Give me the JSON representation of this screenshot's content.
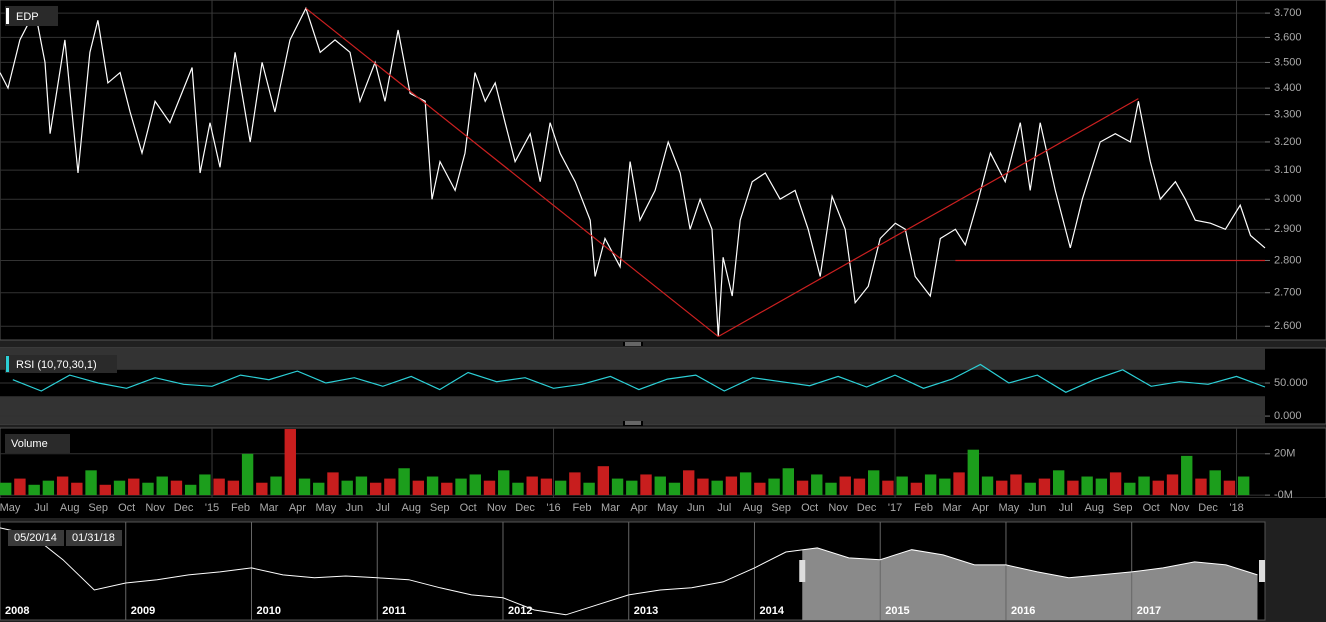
{
  "chart_data": [
    {
      "type": "line",
      "title": "EDP",
      "color": "#ffffff",
      "log_scale": true,
      "grid": true,
      "x": [
        -7.45,
        -7.17,
        -6.75,
        -6.22,
        -5.87,
        -5.69,
        -5.17,
        -4.71,
        -4.29,
        -4.01,
        -3.66,
        -3.23,
        -2.88,
        -2.46,
        -2,
        -1.48,
        -0.7,
        -0.42,
        -0.07,
        0.28,
        0.81,
        1.34,
        1.76,
        2.21,
        2.74,
        3.3,
        3.8,
        4.32,
        4.85,
        5.2,
        5.73,
        6.08,
        6.54,
        6.96,
        7.49,
        7.73,
        8.01,
        8.54,
        8.89,
        9.24,
        9.6,
        9.95,
        10.3,
        10.65,
        11.18,
        11.53,
        11.88,
        12.23,
        12.76,
        13.29,
        13.46,
        13.81,
        14.34,
        14.69,
        15.04,
        15.57,
        16.03,
        16.45,
        16.8,
        17.15,
        17.57,
        17.79,
        17.96,
        18.28,
        18.56,
        18.98,
        19.44,
        19.96,
        20.49,
        20.95,
        21.37,
        21.79,
        22.25,
        22.6,
        23.06,
        23.48,
        24.01,
        24.36,
        24.71,
        25.24,
        25.59,
        26.12,
        26.47,
        26.93,
        27.35,
        27.87,
        28.4,
        28.75,
        29.1,
        29.63,
        30.16,
        30.58,
        31.21,
        31.74,
        32.27,
        32.55,
        32.97,
        33.32,
        33.85,
        34.2,
        34.55,
        35.08,
        35.61,
        36.13,
        36.49,
        37.0
      ],
      "values": [
        3.46,
        3.4,
        3.59,
        3.71,
        3.5,
        3.23,
        3.59,
        3.09,
        3.54,
        3.67,
        3.42,
        3.46,
        3.31,
        3.16,
        3.35,
        3.27,
        3.48,
        3.09,
        3.27,
        3.11,
        3.54,
        3.2,
        3.5,
        3.31,
        3.59,
        3.72,
        3.54,
        3.59,
        3.54,
        3.35,
        3.5,
        3.35,
        3.63,
        3.38,
        3.35,
        3.0,
        3.13,
        3.03,
        3.16,
        3.46,
        3.35,
        3.42,
        3.27,
        3.13,
        3.23,
        3.06,
        3.27,
        3.16,
        3.06,
        2.93,
        2.75,
        2.87,
        2.78,
        3.13,
        2.93,
        3.03,
        3.2,
        3.09,
        2.9,
        3.0,
        2.9,
        2.57,
        2.81,
        2.69,
        2.93,
        3.06,
        3.09,
        3.0,
        3.03,
        2.9,
        2.75,
        3.01,
        2.9,
        2.67,
        2.72,
        2.87,
        2.92,
        2.9,
        2.75,
        2.69,
        2.87,
        2.9,
        2.85,
        3.0,
        3.16,
        3.06,
        3.27,
        3.03,
        3.27,
        3.03,
        2.84,
        3.0,
        3.2,
        3.23,
        3.2,
        3.35,
        3.13,
        3.0,
        3.06,
        3.0,
        2.93,
        2.92,
        2.9,
        2.98,
        2.88,
        2.84
      ],
      "xlim": [
        -7.45,
        37
      ],
      "ylim": [
        2.56,
        3.755
      ],
      "yticks": [
        {
          "value": 2.6,
          "label": "2.600"
        },
        {
          "value": 2.7,
          "label": "2.700"
        },
        {
          "value": 2.8,
          "label": "2.800"
        },
        {
          "value": 2.9,
          "label": "2.900"
        },
        {
          "value": 3.0,
          "label": "3.000"
        },
        {
          "value": 3.1,
          "label": "3.100"
        },
        {
          "value": 3.2,
          "label": "3.200"
        },
        {
          "value": 3.3,
          "label": "3.300"
        },
        {
          "value": 3.4,
          "label": "3.400"
        },
        {
          "value": 3.5,
          "label": "3.500"
        },
        {
          "value": 3.6,
          "label": "3.600"
        },
        {
          "value": 3.7,
          "label": "3.700"
        }
      ],
      "xgrid": [
        0,
        12,
        24,
        36
      ],
      "trendlines": [
        {
          "x": [
            3.3,
            17.79
          ],
          "y": [
            3.72,
            2.57
          ],
          "color": "#cc2020"
        },
        {
          "x": [
            17.79,
            32.55
          ],
          "y": [
            2.57,
            3.36
          ],
          "color": "#cc2020"
        },
        {
          "x": [
            26.12,
            37.0
          ],
          "y": [
            2.8,
            2.8
          ],
          "color": "#cc2020"
        }
      ]
    },
    {
      "type": "line",
      "title": "RSI (10,70,30,1)",
      "color": "#2ccfd6",
      "grid": true,
      "x": [
        -7,
        -6,
        -5,
        -4,
        -3,
        -2,
        -1,
        0,
        1,
        2,
        3,
        4,
        5,
        6,
        7,
        8,
        9,
        10,
        11,
        12,
        13,
        14,
        15,
        16,
        17,
        18,
        19,
        20,
        21,
        22,
        23,
        24,
        25,
        26,
        27,
        28,
        29,
        30,
        31,
        32,
        33,
        34,
        35,
        36,
        37
      ],
      "values": [
        55,
        38,
        62,
        50,
        42,
        58,
        48,
        45,
        62,
        55,
        68,
        50,
        58,
        45,
        60,
        40,
        66,
        52,
        58,
        42,
        48,
        60,
        40,
        56,
        62,
        38,
        58,
        52,
        46,
        60,
        44,
        62,
        42,
        56,
        78,
        50,
        62,
        36,
        55,
        70,
        45,
        52,
        48,
        60,
        44
      ],
      "xlim": [
        -7.45,
        37
      ],
      "ylim": [
        -12,
        103
      ],
      "bands": [
        30,
        70
      ],
      "yticks": [
        {
          "value": 0,
          "label": "0.000"
        },
        {
          "value": 50,
          "label": "50.000"
        }
      ]
    },
    {
      "type": "bar",
      "title": "Volume",
      "up_color": "#1c9e1c",
      "down_color": "#c81e1e",
      "grid": true,
      "x": [
        -7.25,
        -6.75,
        -6.25,
        -5.75,
        -5.25,
        -4.75,
        -4.25,
        -3.75,
        -3.25,
        -2.75,
        -2.25,
        -1.75,
        -1.25,
        -0.75,
        -0.25,
        0.25,
        0.75,
        1.25,
        1.75,
        2.25,
        2.75,
        3.25,
        3.75,
        4.25,
        4.75,
        5.25,
        5.75,
        6.25,
        6.75,
        7.25,
        7.75,
        8.25,
        8.75,
        9.25,
        9.75,
        10.25,
        10.75,
        11.25,
        11.75,
        12.25,
        12.75,
        13.25,
        13.75,
        14.25,
        14.75,
        15.25,
        15.75,
        16.25,
        16.75,
        17.25,
        17.75,
        18.25,
        18.75,
        19.25,
        19.75,
        20.25,
        20.75,
        21.25,
        21.75,
        22.25,
        22.75,
        23.25,
        23.75,
        24.25,
        24.75,
        25.25,
        25.75,
        26.25,
        26.75,
        27.25,
        27.75,
        28.25,
        28.75,
        29.25,
        29.75,
        30.25,
        30.75,
        31.25,
        31.75,
        32.25,
        32.75,
        33.25,
        33.75,
        34.25,
        34.75,
        35.25,
        35.75,
        36.25
      ],
      "values": [
        6,
        8,
        5,
        7,
        9,
        6,
        12,
        5,
        7,
        8,
        6,
        9,
        7,
        5,
        10,
        8,
        7,
        20,
        6,
        9,
        32,
        8,
        6,
        11,
        7,
        9,
        6,
        8,
        13,
        7,
        9,
        6,
        8,
        10,
        7,
        12,
        6,
        9,
        8,
        7,
        11,
        6,
        14,
        8,
        7,
        10,
        9,
        6,
        12,
        8,
        7,
        9,
        11,
        6,
        8,
        13,
        7,
        10,
        6,
        9,
        8,
        12,
        7,
        9,
        6,
        10,
        8,
        11,
        22,
        9,
        7,
        10,
        6,
        8,
        12,
        7,
        9,
        8,
        11,
        6,
        9,
        7,
        10,
        19,
        8,
        12,
        7,
        9
      ],
      "up": [
        true,
        false,
        true,
        true,
        false,
        false,
        true,
        false,
        true,
        false,
        true,
        true,
        false,
        true,
        true,
        false,
        false,
        true,
        false,
        true,
        false,
        true,
        true,
        false,
        true,
        true,
        false,
        false,
        true,
        false,
        true,
        false,
        true,
        true,
        false,
        true,
        true,
        false,
        false,
        true,
        false,
        true,
        false,
        true,
        true,
        false,
        true,
        true,
        false,
        false,
        true,
        false,
        true,
        false,
        true,
        true,
        false,
        true,
        true,
        false,
        false,
        true,
        false,
        true,
        false,
        true,
        true,
        false,
        true,
        true,
        false,
        false,
        true,
        false,
        true,
        false,
        true,
        true,
        false,
        true,
        true,
        false,
        false,
        true,
        false,
        true,
        false,
        true
      ],
      "xlim": [
        -7.45,
        37
      ],
      "ylim": [
        -1.4,
        32.5
      ],
      "yticks": [
        {
          "value": 0,
          "label": "-0M"
        },
        {
          "value": 20,
          "label": "20M"
        }
      ],
      "xticks": [
        {
          "value": -7.1,
          "label": "May"
        },
        {
          "value": -6,
          "label": "Jul"
        },
        {
          "value": -5,
          "label": "Aug"
        },
        {
          "value": -4,
          "label": "Sep"
        },
        {
          "value": -3,
          "label": "Oct"
        },
        {
          "value": -2,
          "label": "Nov"
        },
        {
          "value": -1,
          "label": "Dec"
        },
        {
          "value": 0,
          "label": "'15"
        },
        {
          "value": 1,
          "label": "Feb"
        },
        {
          "value": 2,
          "label": "Mar"
        },
        {
          "value": 3,
          "label": "Apr"
        },
        {
          "value": 4,
          "label": "May"
        },
        {
          "value": 5,
          "label": "Jun"
        },
        {
          "value": 6,
          "label": "Jul"
        },
        {
          "value": 7,
          "label": "Aug"
        },
        {
          "value": 8,
          "label": "Sep"
        },
        {
          "value": 9,
          "label": "Oct"
        },
        {
          "value": 10,
          "label": "Nov"
        },
        {
          "value": 11,
          "label": "Dec"
        },
        {
          "value": 12,
          "label": "'16"
        },
        {
          "value": 13,
          "label": "Feb"
        },
        {
          "value": 14,
          "label": "Mar"
        },
        {
          "value": 15,
          "label": "Apr"
        },
        {
          "value": 16,
          "label": "May"
        },
        {
          "value": 17,
          "label": "Jun"
        },
        {
          "value": 18,
          "label": "Jul"
        },
        {
          "value": 19,
          "label": "Aug"
        },
        {
          "value": 20,
          "label": "Sep"
        },
        {
          "value": 21,
          "label": "Oct"
        },
        {
          "value": 22,
          "label": "Nov"
        },
        {
          "value": 23,
          "label": "Dec"
        },
        {
          "value": 24,
          "label": "'17"
        },
        {
          "value": 25,
          "label": "Feb"
        },
        {
          "value": 26,
          "label": "Mar"
        },
        {
          "value": 27,
          "label": "Apr"
        },
        {
          "value": 28,
          "label": "May"
        },
        {
          "value": 29,
          "label": "Jun"
        },
        {
          "value": 30,
          "label": "Jul"
        },
        {
          "value": 31,
          "label": "Aug"
        },
        {
          "value": 32,
          "label": "Sep"
        },
        {
          "value": 33,
          "label": "Oct"
        },
        {
          "value": 34,
          "label": "Nov"
        },
        {
          "value": 35,
          "label": "Dec"
        },
        {
          "value": 36,
          "label": "'18"
        }
      ]
    },
    {
      "type": "area",
      "color": "#ffffff",
      "fill": "#8a8a8a",
      "x": [
        2008,
        2008.25,
        2008.5,
        2008.75,
        2009,
        2009.25,
        2009.5,
        2009.75,
        2010,
        2010.25,
        2010.5,
        2010.75,
        2011,
        2011.25,
        2011.5,
        2011.75,
        2012,
        2012.25,
        2012.5,
        2012.75,
        2013,
        2013.25,
        2013.5,
        2013.75,
        2014,
        2014.25,
        2014.5,
        2014.75,
        2015,
        2015.25,
        2015.5,
        2015.75,
        2016,
        2016.25,
        2016.5,
        2016.75,
        2017,
        2017.25,
        2017.5,
        2017.75,
        2018
      ],
      "values": [
        4.04,
        3.85,
        3.18,
        2.36,
        2.55,
        2.64,
        2.77,
        2.85,
        2.96,
        2.77,
        2.69,
        2.74,
        2.69,
        2.64,
        2.42,
        2.23,
        2.15,
        1.82,
        1.69,
        1.96,
        2.23,
        2.36,
        2.42,
        2.58,
        2.96,
        3.39,
        3.5,
        3.23,
        3.18,
        3.45,
        3.31,
        3.04,
        3.04,
        2.85,
        2.69,
        2.77,
        2.85,
        2.96,
        3.12,
        3.04,
        2.77
      ],
      "xlim": [
        2008,
        2018.06
      ],
      "ylim": [
        1.55,
        4.2
      ],
      "xticks": [
        2008,
        2009,
        2010,
        2011,
        2012,
        2013,
        2014,
        2015,
        2016,
        2017
      ],
      "selection": [
        2014.38,
        2018.08
      ],
      "selection_labels": [
        "05/20/14",
        "01/31/18"
      ]
    }
  ]
}
